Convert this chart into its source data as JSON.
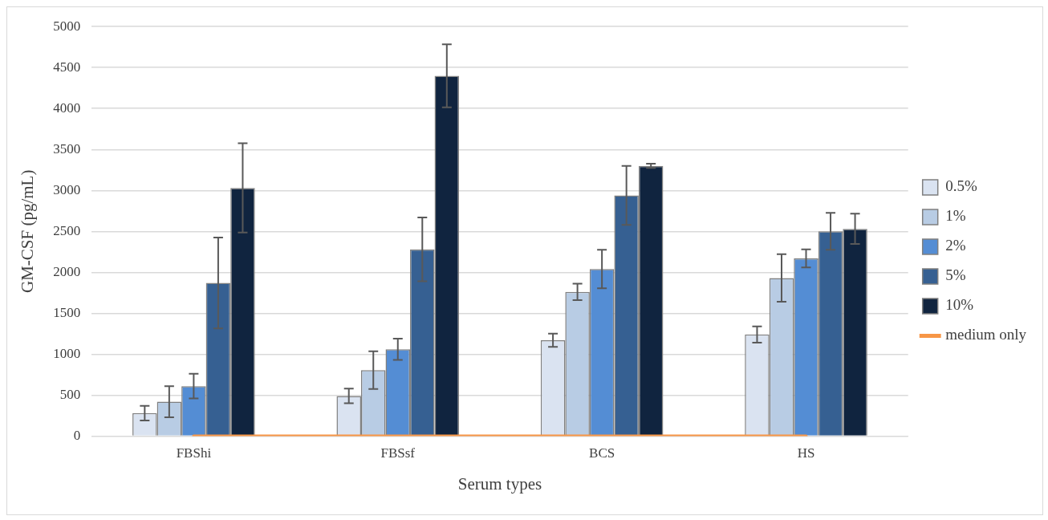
{
  "chart_data": {
    "type": "bar",
    "xlabel": "Serum types",
    "ylabel": "GM-CSF (pg/mL)",
    "categories": [
      "FBShi",
      "FBSsf",
      "BCS",
      "HS"
    ],
    "series": [
      {
        "name": "0.5%",
        "color": "#dae3f1",
        "values": [
          280,
          490,
          1170,
          1240
        ],
        "errors": [
          90,
          90,
          80,
          100
        ]
      },
      {
        "name": "1%",
        "color": "#b8cce4",
        "values": [
          420,
          805,
          1760,
          1930
        ],
        "errors": [
          190,
          230,
          100,
          290
        ]
      },
      {
        "name": "2%",
        "color": "#548dd4",
        "values": [
          610,
          1060,
          2040,
          2170
        ],
        "errors": [
          150,
          130,
          235,
          110
        ]
      },
      {
        "name": "5%",
        "color": "#366092",
        "values": [
          1870,
          2280,
          2940,
          2500
        ],
        "errors": [
          555,
          390,
          360,
          225
        ]
      },
      {
        "name": "10%",
        "color": "#10243f",
        "values": [
          3030,
          4400,
          3300,
          2530
        ],
        "errors": [
          545,
          385,
          25,
          185
        ]
      },
      {
        "name": "medium only",
        "type": "line",
        "color": "#f79646",
        "values": [
          0,
          0,
          0,
          0
        ]
      }
    ],
    "ylim": [
      0,
      5000
    ],
    "yticks": [
      0,
      500,
      1000,
      1500,
      2000,
      2500,
      3000,
      3500,
      4000,
      4500,
      5000
    ],
    "grid": "y",
    "legend": "right",
    "marker": "none"
  }
}
